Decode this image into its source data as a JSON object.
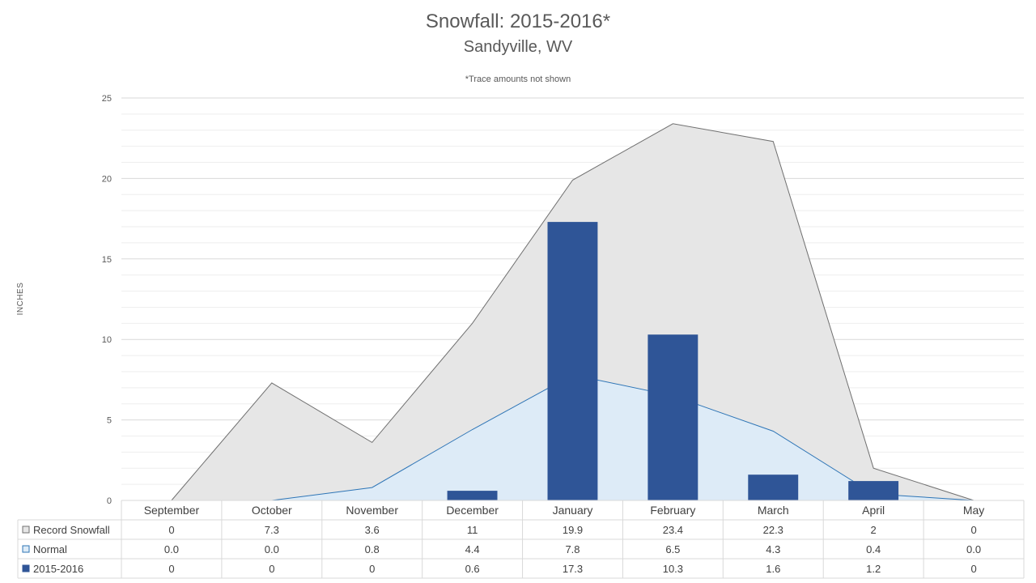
{
  "chart_data": {
    "type": "area",
    "title": "Snowfall: 2015-2016*",
    "subtitle": "Sandyville, WV",
    "note": "*Trace amounts not shown",
    "ylabel": "INCHES",
    "xlabel": "",
    "ylim": [
      0,
      25
    ],
    "yticks": [
      0,
      5,
      10,
      15,
      20,
      25
    ],
    "grid": true,
    "legend": "data-table-left",
    "categories": [
      "September",
      "October",
      "November",
      "December",
      "January",
      "February",
      "March",
      "April",
      "May"
    ],
    "series": [
      {
        "name": "Record Snowfall",
        "kind": "area",
        "color": "#e6e6e6",
        "stroke": "#707070",
        "values": [
          0,
          7.3,
          3.6,
          11,
          19.9,
          23.4,
          22.3,
          2,
          0
        ],
        "labels": [
          "0",
          "7.3",
          "3.6",
          "11",
          "19.9",
          "23.4",
          "22.3",
          "2",
          "0"
        ]
      },
      {
        "name": "Normal",
        "kind": "area",
        "color": "#ddebf7",
        "stroke": "#2e75b6",
        "values": [
          0.0,
          0.0,
          0.8,
          4.4,
          7.8,
          6.5,
          4.3,
          0.4,
          0.0
        ],
        "labels": [
          "0.0",
          "0.0",
          "0.8",
          "4.4",
          "7.8",
          "6.5",
          "4.3",
          "0.4",
          "0.0"
        ]
      },
      {
        "name": "2015-2016",
        "kind": "bar",
        "color": "#2f5597",
        "values": [
          0,
          0,
          0,
          0.6,
          17.3,
          10.3,
          1.6,
          1.2,
          0
        ],
        "labels": [
          "0",
          "0",
          "0",
          "0.6",
          "17.3",
          "10.3",
          "1.6",
          "1.2",
          "0"
        ]
      }
    ]
  }
}
